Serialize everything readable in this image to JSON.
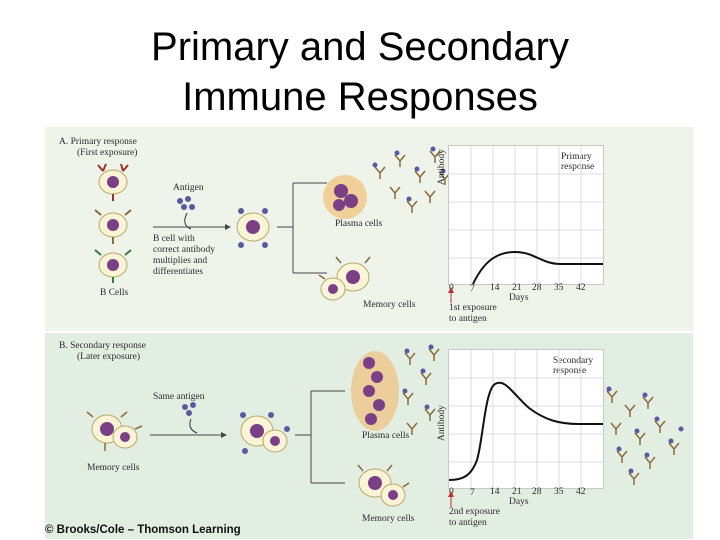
{
  "title": {
    "line1": "Primary and Secondary",
    "line2": "Immune Responses"
  },
  "panel_a": {
    "heading": "A.  Primary response",
    "subheading": "(First exposure)",
    "antigen_label": "Antigen",
    "bcell_caption": [
      "B cell with",
      "correct antibody",
      "multiplies and",
      "differentiates"
    ],
    "bcells_label": "B Cells",
    "plasma_label": "Plasma cells",
    "memory_label": "Memory cells",
    "graph": {
      "response_label": [
        "Primary",
        "response"
      ],
      "ylabel": "Antibody",
      "xlabel": "Days",
      "ticks": [
        "0",
        "7",
        "14",
        "21",
        "28",
        "35",
        "42"
      ],
      "exposure_label": [
        "1st exposure",
        "to antigen"
      ]
    }
  },
  "panel_b": {
    "heading": "B.  Secondary response",
    "subheading": "(Later exposure)",
    "antigen_label": "Same antigen",
    "memory_cells_left_label": "Memory cells",
    "plasma_label": "Plasma cells",
    "memory_label": "Memory cells",
    "graph": {
      "response_label": [
        "Secondary",
        "response"
      ],
      "ylabel": "Antibody",
      "xlabel": "Days",
      "ticks": [
        "0",
        "7",
        "14",
        "21",
        "28",
        "35",
        "42"
      ],
      "exposure_label": [
        "2nd exposure",
        "to antigen"
      ]
    }
  },
  "copyright": "© Brooks/Cole – Thomson Learning",
  "colors": {
    "cell_fill": "#fbf4d6",
    "cell_stroke": "#b8a86a",
    "nucleus": "#7b3f86",
    "antigen": "#5a5aa0",
    "antibody": "#8a6a3a",
    "plasma_glow": "#f2b562"
  }
}
